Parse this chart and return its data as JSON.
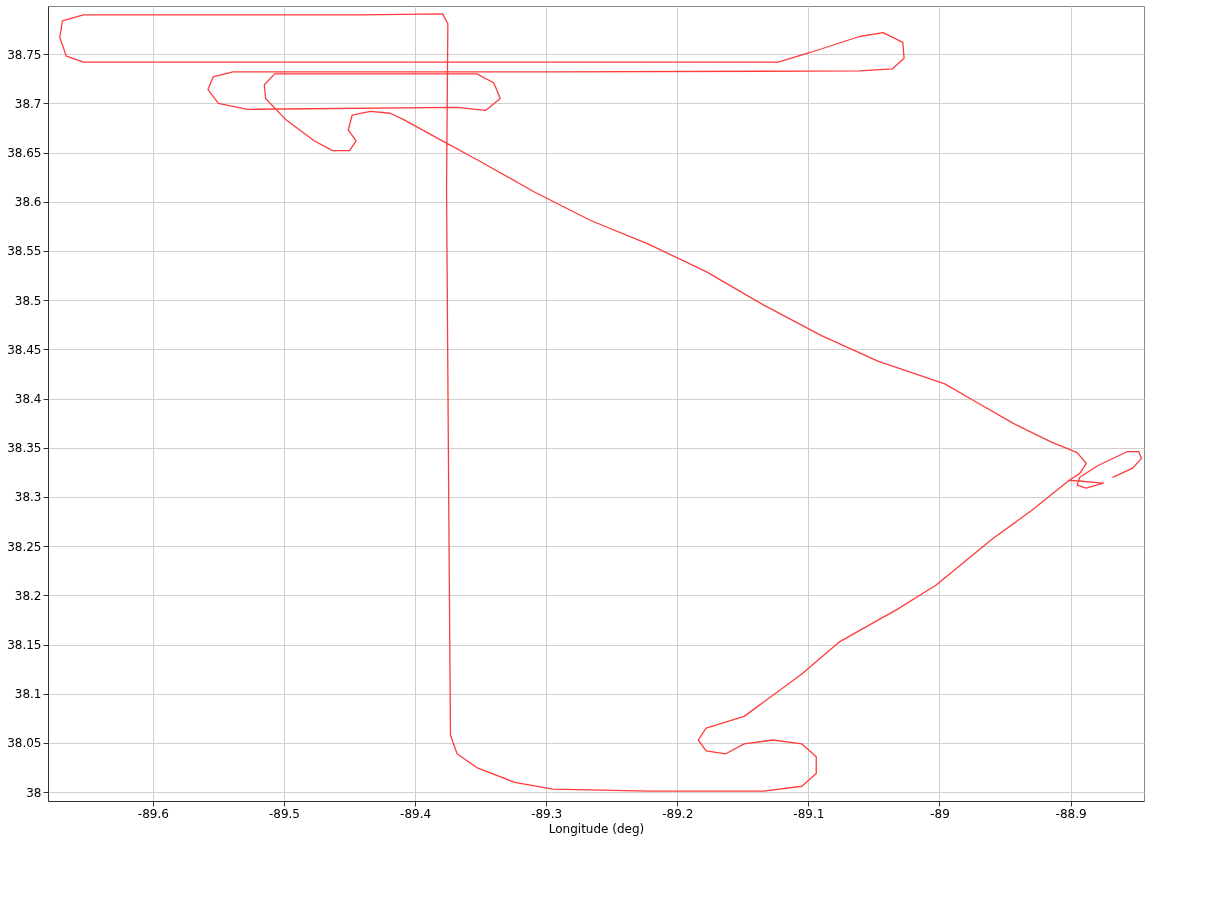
{
  "chart_data": {
    "type": "line",
    "xlabel": "Longitude (deg)",
    "grid": true,
    "marker": "none",
    "line_style": "solid",
    "xlim": [
      -89.68,
      -88.844
    ],
    "ylim": [
      37.991,
      38.799
    ],
    "xticks": [
      -89.6,
      -89.5,
      -89.4,
      -89.3,
      -89.2,
      -89.1,
      -89,
      -88.9
    ],
    "yticks": [
      38,
      38.05,
      38.1,
      38.15,
      38.2,
      38.25,
      38.3,
      38.35,
      38.4,
      38.45,
      38.5,
      38.55,
      38.6,
      38.65,
      38.7,
      38.75
    ],
    "series": [
      {
        "color": "#ff3b3b",
        "x": [
          -88.868,
          -88.853,
          -88.846,
          -88.848,
          -88.857,
          -88.879,
          -88.893,
          -88.895,
          -88.888,
          -88.875,
          -88.901,
          -88.93,
          -88.959,
          -89.003,
          -89.032,
          -89.076,
          -89.105,
          -89.149,
          -89.178,
          -89.184,
          -89.178,
          -89.163,
          -89.149,
          -89.127,
          -89.105,
          -89.094,
          -89.094,
          -89.105,
          -89.134,
          -89.222,
          -89.295,
          -89.324,
          -89.353,
          -89.368,
          -89.373,
          -89.374,
          -89.375,
          -89.376,
          -89.375,
          -89.379,
          -89.441,
          -89.653,
          -89.669,
          -89.671,
          -89.666,
          -89.653,
          -89.368,
          -89.123,
          -89.098,
          -89.061,
          -89.043,
          -89.028,
          -89.027,
          -89.036,
          -89.061,
          -89.295,
          -89.539,
          -89.554,
          -89.558,
          -89.55,
          -89.528,
          -89.368,
          -89.346,
          -89.335,
          -89.34,
          -89.353,
          -89.507,
          -89.515,
          -89.514,
          -89.499,
          -89.477,
          -89.463,
          -89.45,
          -89.445,
          -89.451,
          -89.448,
          -89.434,
          -89.419,
          -89.408,
          -89.382,
          -89.353,
          -89.309,
          -89.266,
          -89.222,
          -89.178,
          -89.134,
          -89.09,
          -89.047,
          -88.996,
          -88.974,
          -88.944,
          -88.915,
          -88.895,
          -88.888,
          -88.893,
          -88.901
        ],
        "values": [
          38.32,
          38.329,
          38.339,
          38.346,
          38.346,
          38.332,
          38.32,
          38.312,
          38.309,
          38.314,
          38.317,
          38.286,
          38.258,
          38.21,
          38.186,
          38.153,
          38.12,
          38.077,
          38.065,
          38.053,
          38.042,
          38.039,
          38.049,
          38.053,
          38.049,
          38.036,
          38.019,
          38.006,
          38.001,
          38.001,
          38.003,
          38.01,
          38.025,
          38.039,
          38.058,
          38.234,
          38.424,
          38.614,
          38.781,
          38.791,
          38.79,
          38.79,
          38.784,
          38.767,
          38.748,
          38.742,
          38.742,
          38.742,
          38.752,
          38.768,
          38.772,
          38.762,
          38.746,
          38.735,
          38.733,
          38.732,
          38.732,
          38.727,
          38.714,
          38.7,
          38.694,
          38.696,
          38.693,
          38.705,
          38.721,
          38.73,
          38.73,
          38.719,
          38.705,
          38.684,
          38.662,
          38.652,
          38.652,
          38.662,
          38.673,
          38.688,
          38.692,
          38.69,
          38.683,
          38.664,
          38.643,
          38.61,
          38.581,
          38.557,
          38.529,
          38.495,
          38.464,
          38.438,
          38.415,
          38.398,
          38.375,
          38.356,
          38.345,
          38.334,
          38.324,
          38.317
        ]
      }
    ]
  }
}
